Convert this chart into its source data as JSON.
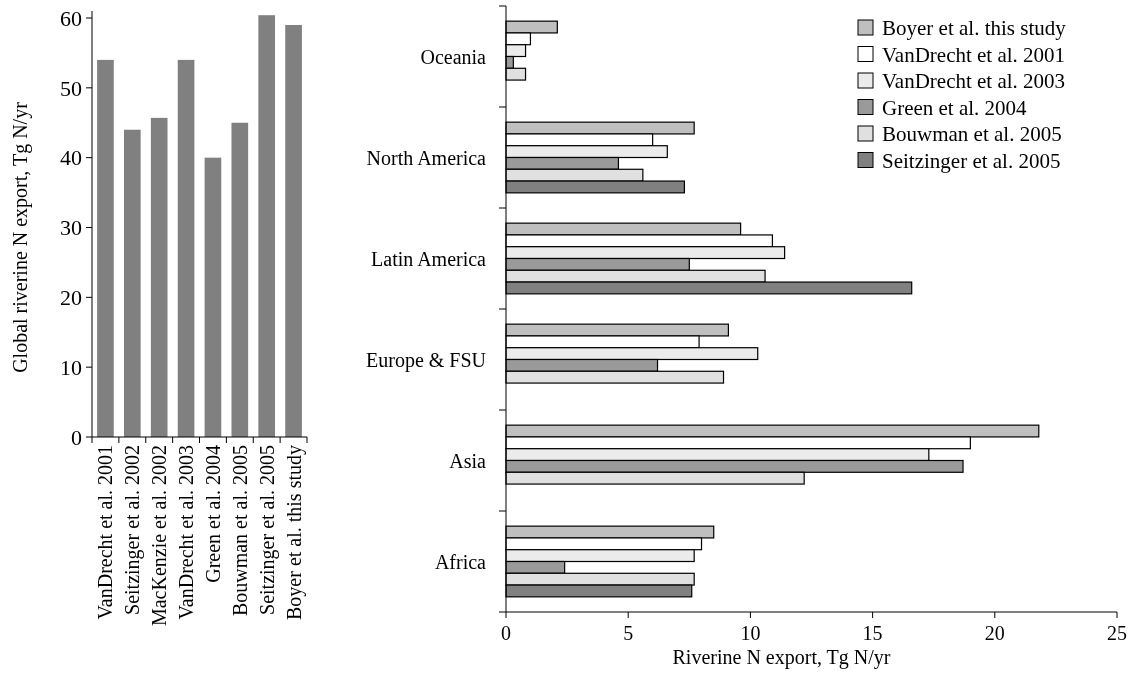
{
  "chart_data": [
    {
      "type": "bar",
      "ylabel": "Global riverine N export, Tg N/yr",
      "categories": [
        "VanDrecht et al. 2001",
        "Seitzinger et al. 2002",
        "MacKenzie et al. 2002",
        "VanDrecht et al. 2003",
        "Green et al. 2004",
        "Bouwman et al. 2005",
        "Seitzinger et al. 2005",
        "Boyer et al. this study"
      ],
      "values": [
        54,
        44,
        45.7,
        54,
        40,
        45,
        60.4,
        59
      ],
      "color": "#808080",
      "ylim": [
        0,
        61
      ],
      "yticks": [
        0,
        10,
        20,
        30,
        40,
        50,
        60
      ],
      "grid": false
    },
    {
      "type": "bar",
      "orientation": "horizontal",
      "xlabel": "Riverine N export, Tg N/yr",
      "categories": [
        "Oceania",
        "North America",
        "Latin America",
        "Europe & FSU",
        "Asia",
        "Africa"
      ],
      "xlim": [
        0,
        25
      ],
      "xticks": [
        0,
        5,
        10,
        15,
        20,
        25
      ],
      "grid": false,
      "legend": "top right",
      "series": [
        {
          "name": "Boyer et al. this study",
          "color": "#bfbfbf",
          "values": [
            2.1,
            7.7,
            9.6,
            9.1,
            21.8,
            8.5
          ]
        },
        {
          "name": "VanDrecht et al. 2001",
          "color": "#ffffff",
          "values": [
            1.0,
            6.0,
            10.9,
            7.9,
            19.0,
            8.0
          ]
        },
        {
          "name": "VanDrecht et al. 2003",
          "color": "#ebebeb",
          "values": [
            0.8,
            6.6,
            11.4,
            10.3,
            17.3,
            7.7
          ]
        },
        {
          "name": "Green et al. 2004",
          "color": "#9a9a9a",
          "values": [
            0.3,
            4.6,
            7.5,
            6.2,
            18.7,
            2.4
          ]
        },
        {
          "name": "Bouwman et al. 2005",
          "color": "#e0e0e0",
          "values": [
            0.8,
            5.6,
            10.6,
            8.9,
            12.2,
            7.7
          ]
        },
        {
          "name": "Seitzinger et al. 2005",
          "color": "#808080",
          "values": [
            null,
            7.3,
            16.6,
            null,
            null,
            7.6
          ]
        }
      ]
    }
  ]
}
